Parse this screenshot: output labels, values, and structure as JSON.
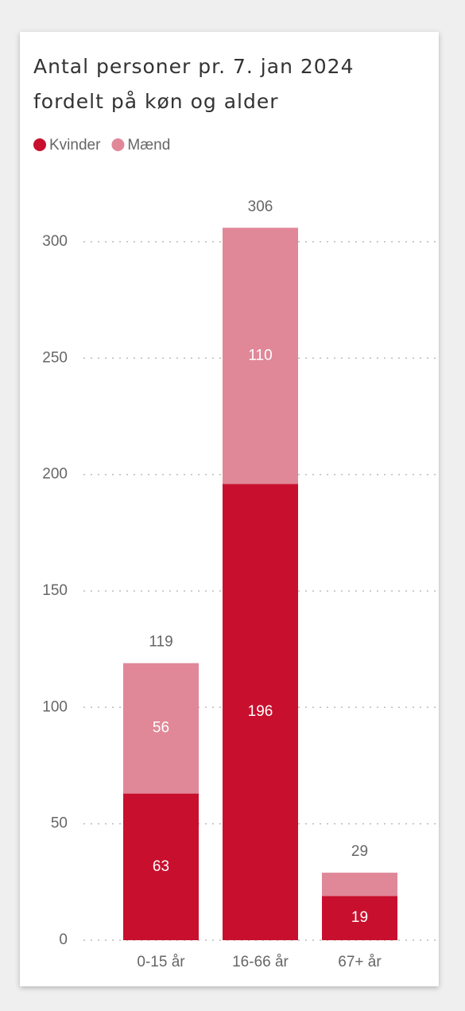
{
  "chart_data": {
    "type": "stacked_bar",
    "title": "Antal personer pr. 7. jan 2024 fordelt på køn og alder",
    "categories": [
      "0-15 år",
      "16-66 år",
      "67+ år"
    ],
    "series": [
      {
        "name": "Kvinder",
        "color": "#c8102e",
        "values": [
          63,
          196,
          19
        ]
      },
      {
        "name": "Mænd",
        "color": "#e08898",
        "values": [
          56,
          110,
          10
        ]
      }
    ],
    "totals": [
      119,
      306,
      29
    ],
    "ylim": [
      0,
      320
    ],
    "yticks": [
      0,
      50,
      100,
      150,
      200,
      250,
      300
    ],
    "grid": true,
    "legend": "top-left"
  }
}
